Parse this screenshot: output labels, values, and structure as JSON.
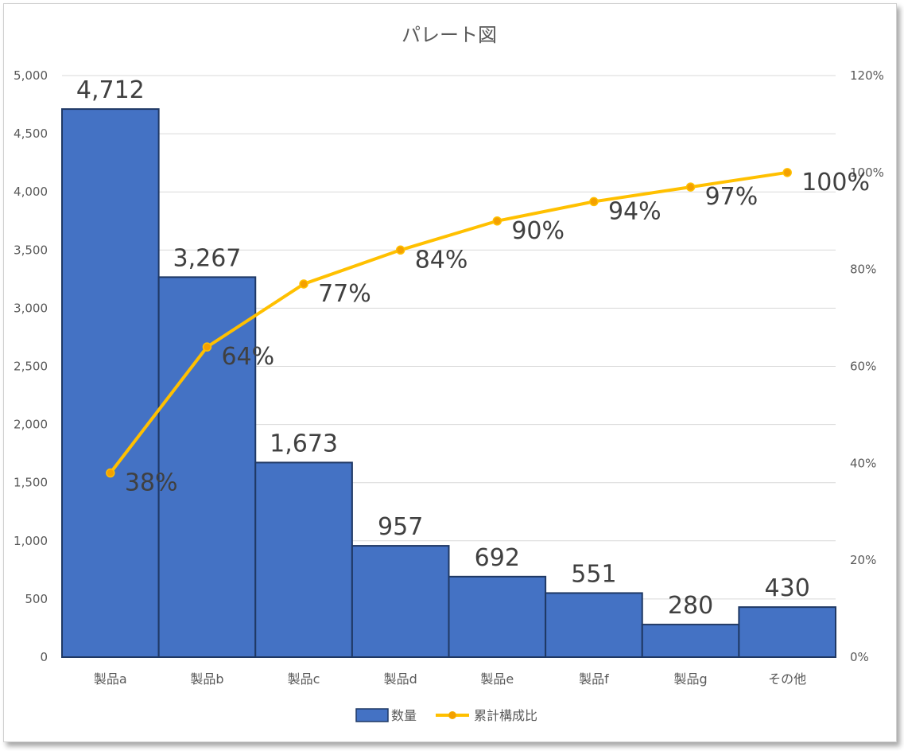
{
  "chart_data": {
    "type": "bar",
    "title": "パレート図",
    "categories": [
      "製品a",
      "製品b",
      "製品c",
      "製品d",
      "製品e",
      "製品f",
      "製品g",
      "その他"
    ],
    "series": [
      {
        "name": "数量",
        "type": "bar",
        "axis": "left",
        "color": "#4472C4",
        "values": [
          4712,
          3267,
          1673,
          957,
          692,
          551,
          280,
          430
        ],
        "labels": [
          "4,712",
          "3,267",
          "1,673",
          "957",
          "692",
          "551",
          "280",
          "430"
        ]
      },
      {
        "name": "累計構成比",
        "type": "line",
        "axis": "right",
        "color": "#FFC000",
        "values": [
          38,
          64,
          77,
          84,
          90,
          94,
          97,
          100
        ],
        "labels": [
          "38%",
          "64%",
          "77%",
          "84%",
          "90%",
          "94%",
          "97%",
          "100%"
        ]
      }
    ],
    "ylim": [
      0,
      5000
    ],
    "y_ticks": [
      "0",
      "500",
      "1,000",
      "1,500",
      "2,000",
      "2,500",
      "3,000",
      "3,500",
      "4,000",
      "4,500",
      "5,000"
    ],
    "y2lim": [
      0,
      120
    ],
    "y2_ticks": [
      "0%",
      "20%",
      "40%",
      "60%",
      "80%",
      "100%",
      "120%"
    ],
    "grid": true,
    "legend": "bottom"
  }
}
